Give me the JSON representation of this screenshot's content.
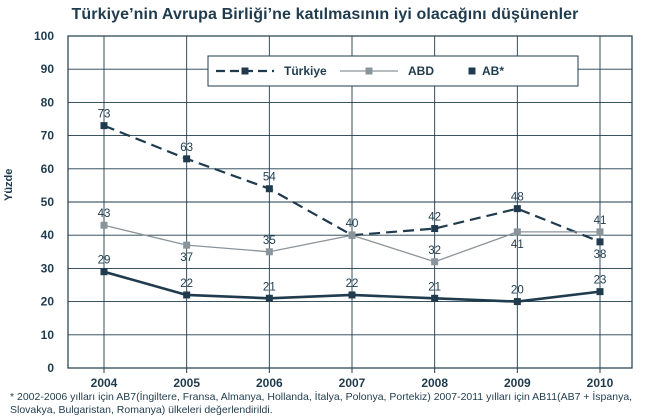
{
  "chart_data": {
    "type": "line",
    "title": "Türkiye’nin Avrupa Birliği’ne katılmasının iyi olacağını düşünenler",
    "ylabel": "Yüzde",
    "xlabel": "",
    "categories": [
      "2004",
      "2005",
      "2006",
      "2007",
      "2008",
      "2009",
      "2010"
    ],
    "ylim": [
      0,
      100
    ],
    "yticks": [
      "0",
      "10",
      "20",
      "30",
      "40",
      "50",
      "60",
      "70",
      "80",
      "90",
      "100"
    ],
    "grid": true,
    "legend_position": "top-right",
    "series": [
      {
        "name": "Türkiye",
        "style": "dashed",
        "color": "#1f3b4d",
        "values": [
          73,
          63,
          54,
          40,
          42,
          48,
          38
        ]
      },
      {
        "name": "ABD",
        "style": "thin",
        "color": "#8a949b",
        "values": [
          43,
          37,
          35,
          40,
          32,
          41,
          41
        ]
      },
      {
        "name": "AB*",
        "style": "solid",
        "color": "#1f3b4d",
        "values": [
          29,
          22,
          21,
          22,
          21,
          20,
          23
        ]
      }
    ],
    "data_labels": [
      [
        "73",
        "63",
        "54",
        "40",
        "42",
        "48",
        "38"
      ],
      [
        "43",
        "37",
        "35",
        "",
        "32",
        "41",
        "41"
      ],
      [
        "29",
        "22",
        "21",
        "22",
        "21",
        "20",
        "23"
      ]
    ]
  },
  "footnote": "* 2002-2006 yılları için AB7(İngiltere, Fransa, Almanya, Hollanda, İtalya, Polonya, Portekiz) 2007-2011 yılları için AB11(AB7 + İspanya, Slovakya, Bulgaristan, Romanya) ülkeleri değerlendirildi."
}
